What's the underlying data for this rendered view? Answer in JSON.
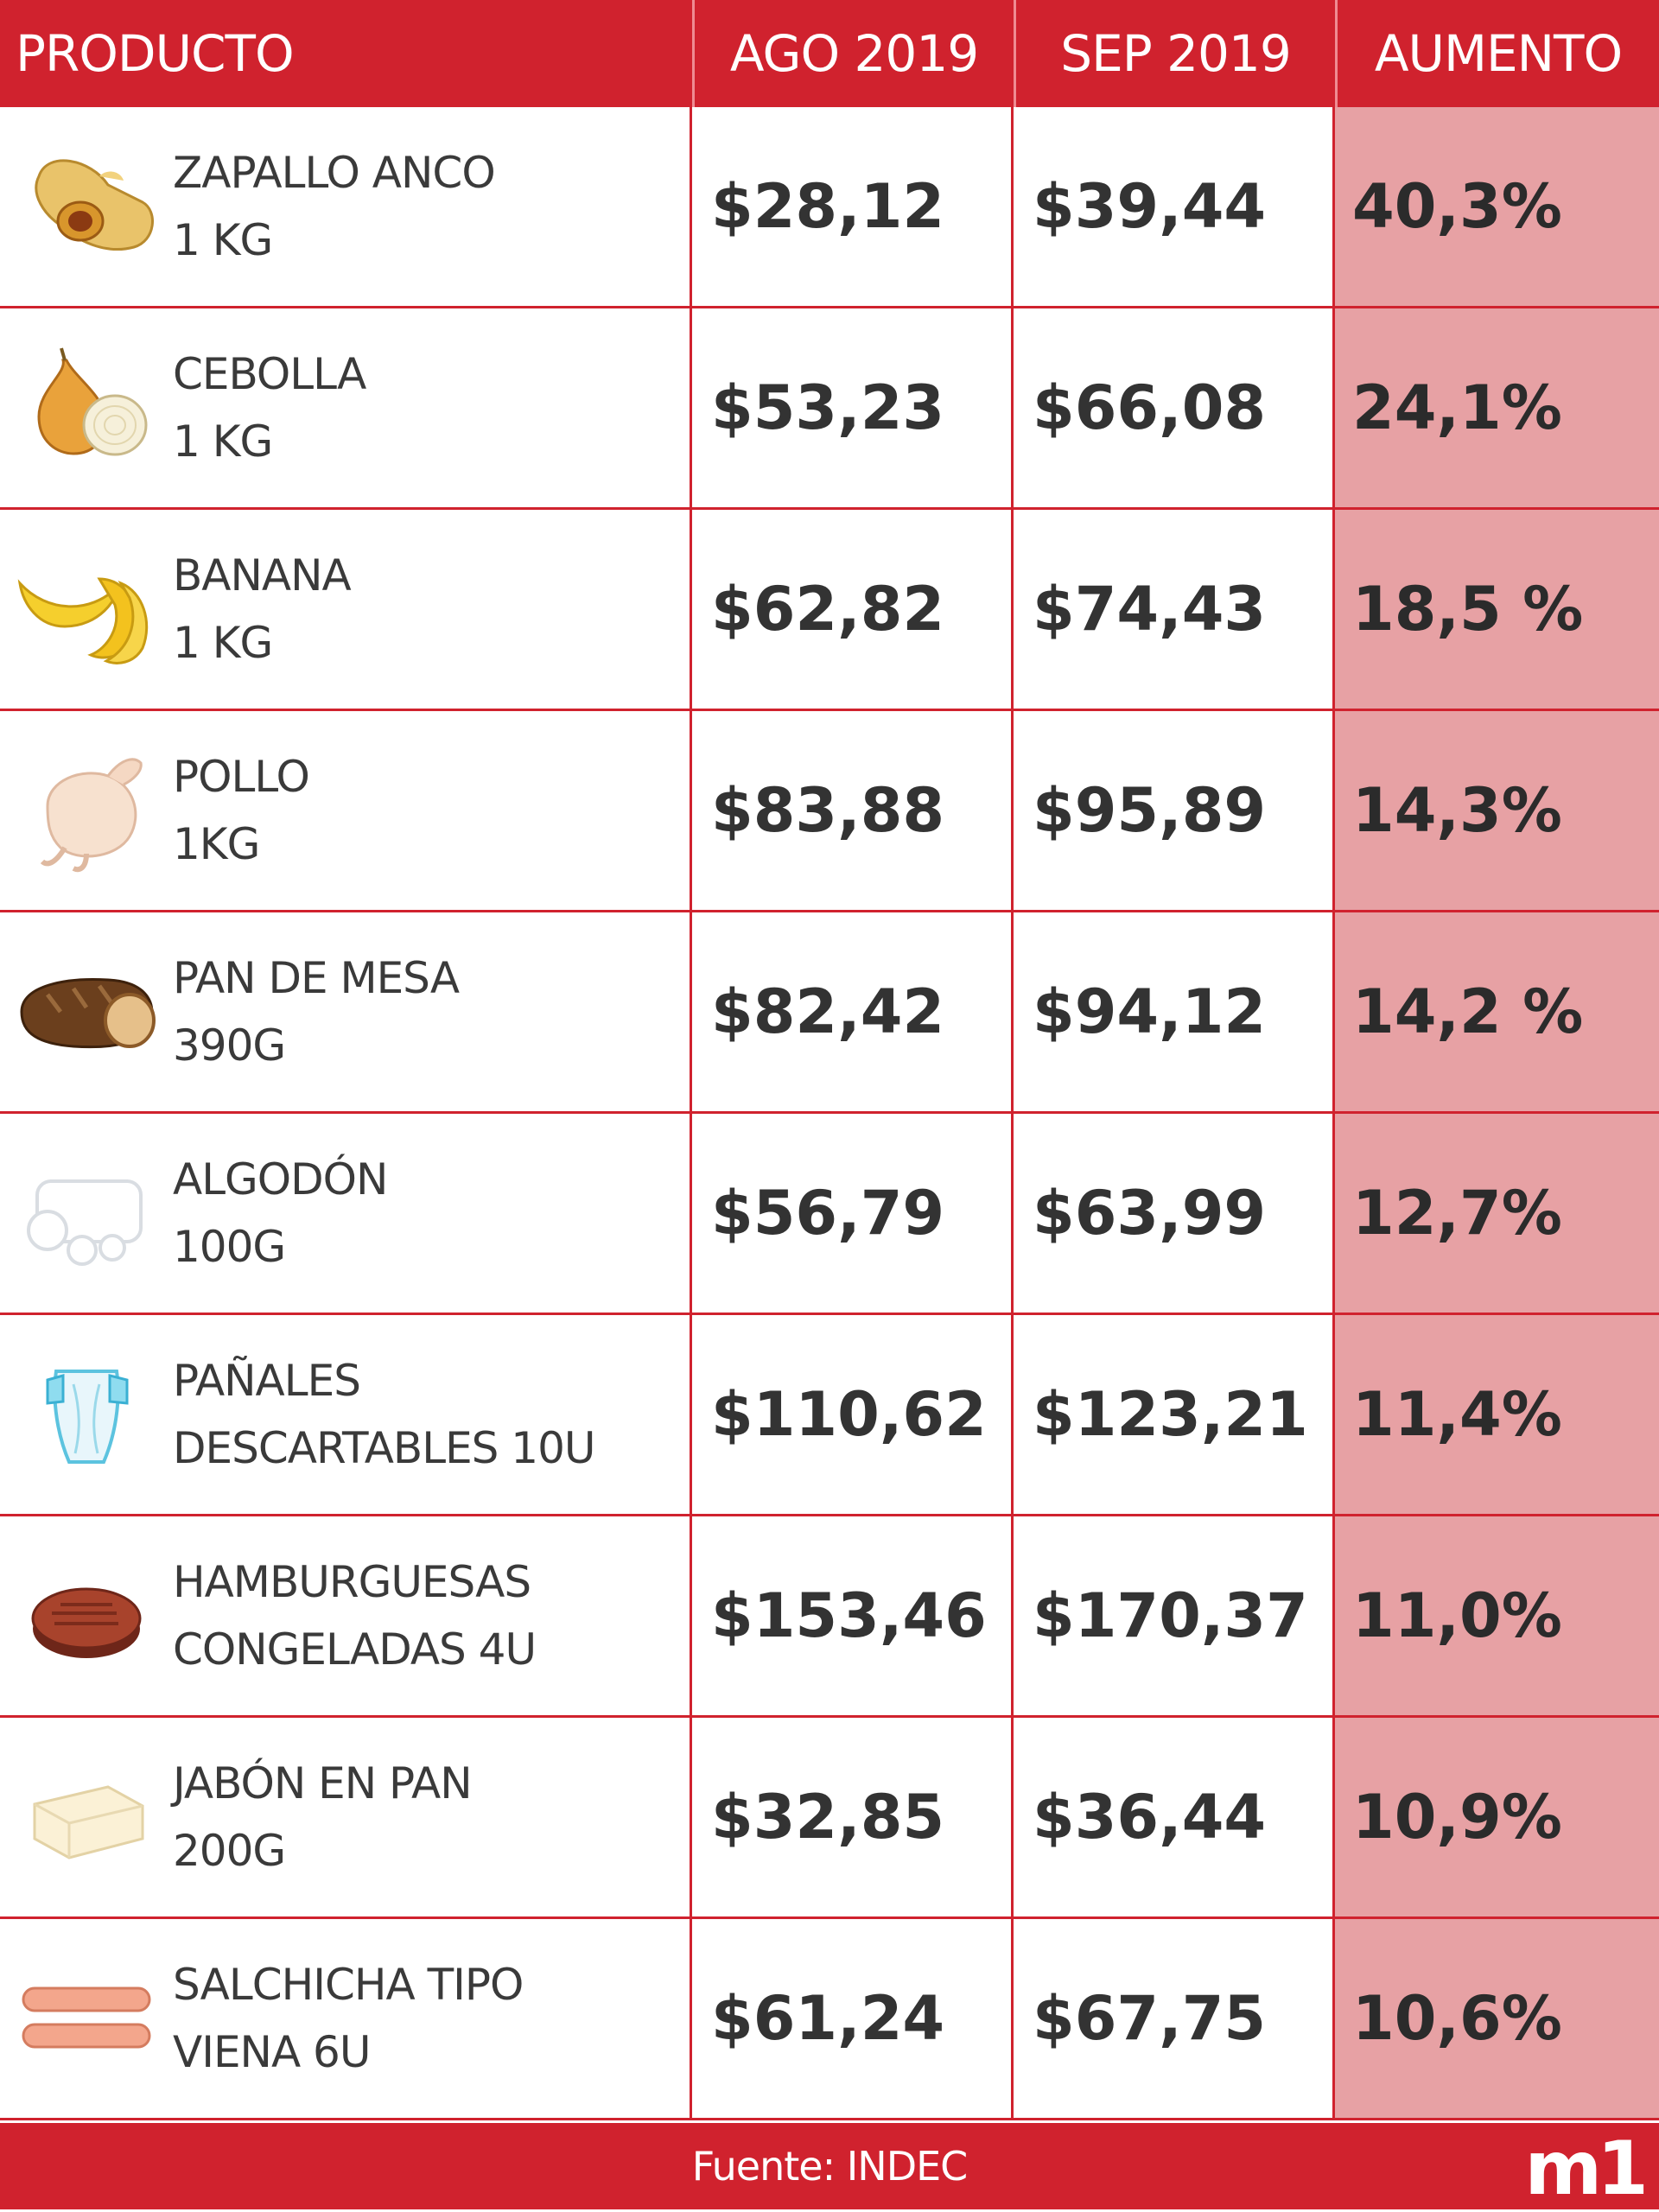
{
  "header": {
    "product": "PRODUCTO",
    "aug": "AGO 2019",
    "sep": "SEP 2019",
    "increase": "AUMENTO"
  },
  "footer": {
    "source": "Fuente: INDEC",
    "logo": "m1"
  },
  "chart_data": {
    "type": "table",
    "columns": [
      "PRODUCTO",
      "AGO 2019",
      "SEP 2019",
      "AUMENTO"
    ],
    "rows": [
      {
        "name1": "ZAPALLO ANCO",
        "name2": "1 KG",
        "aug": "$28,12",
        "sep": "$39,44",
        "increase": "40,3%",
        "icon": "squash-icon"
      },
      {
        "name1": "CEBOLLA",
        "name2": "1 KG",
        "aug": "$53,23",
        "sep": "$66,08",
        "increase": "24,1%",
        "icon": "onion-icon"
      },
      {
        "name1": "BANANA",
        "name2": "1 KG",
        "aug": "$62,82",
        "sep": "$74,43",
        "increase": "18,5 %",
        "icon": "banana-icon"
      },
      {
        "name1": "POLLO",
        "name2": "1KG",
        "aug": "$83,88",
        "sep": "$95,89",
        "increase": "14,3%",
        "icon": "chicken-icon"
      },
      {
        "name1": "PAN DE MESA",
        "name2": "390G",
        "aug": "$82,42",
        "sep": "$94,12",
        "increase": "14,2 %",
        "icon": "bread-icon"
      },
      {
        "name1": "ALGODÓN",
        "name2": "100G",
        "aug": "$56,79",
        "sep": "$63,99",
        "increase": "12,7%",
        "icon": "cotton-icon"
      },
      {
        "name1": "PAÑALES",
        "name2": "DESCARTABLES 10U",
        "aug": "$110,62",
        "sep": "$123,21",
        "increase": "11,4%",
        "icon": "diaper-icon"
      },
      {
        "name1": "HAMBURGUESAS",
        "name2": "CONGELADAS 4U",
        "aug": "$153,46",
        "sep": "$170,37",
        "increase": "11,0%",
        "icon": "burger-patty-icon"
      },
      {
        "name1": "JABÓN EN PAN",
        "name2": "200G",
        "aug": "$32,85",
        "sep": "$36,44",
        "increase": "10,9%",
        "icon": "soap-bar-icon"
      },
      {
        "name1": "SALCHICHA TIPO",
        "name2": "VIENA 6U",
        "aug": "$61,24",
        "sep": "$67,75",
        "increase": "10,6%",
        "icon": "sausage-icon"
      }
    ]
  },
  "colors": {
    "brand_red": "#d0222e",
    "increase_bg": "#e7a1a4"
  }
}
